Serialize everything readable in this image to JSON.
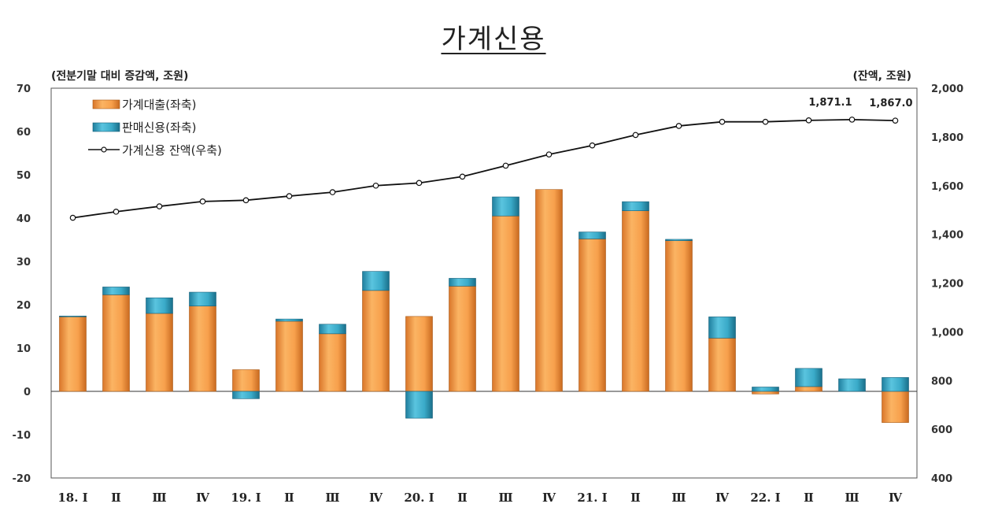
{
  "title": "가계신용",
  "chart_data": {
    "type": "bar",
    "stacked": true,
    "title": "가계신용",
    "left_axis_unit": "(전분기말 대비 증감액, 조원)",
    "right_axis_unit": "(잔액, 조원)",
    "ylim_left": [
      -20,
      70
    ],
    "ylim_right": [
      400,
      2000
    ],
    "left_ticks": [
      "70",
      "60",
      "50",
      "40",
      "30",
      "20",
      "10",
      "0",
      "-10",
      "-20"
    ],
    "right_ticks": [
      "2,000",
      "1,800",
      "1,600",
      "1,400",
      "1,200",
      "1,000",
      "800",
      "600",
      "400"
    ],
    "categories": [
      "18. Ⅰ",
      "Ⅱ",
      "Ⅲ",
      "Ⅳ",
      "19. Ⅰ",
      "Ⅱ",
      "Ⅲ",
      "Ⅳ",
      "20. Ⅰ",
      "Ⅱ",
      "Ⅲ",
      "Ⅳ",
      "21. Ⅰ",
      "Ⅱ",
      "Ⅲ",
      "Ⅳ",
      "22. Ⅰ",
      "Ⅱ",
      "Ⅲ",
      "Ⅳ"
    ],
    "series": [
      {
        "name": "가계대출(좌축)",
        "kind": "bar",
        "axis": "left",
        "color": "#f5a04a",
        "values": [
          17.3,
          22.3,
          18.0,
          19.7,
          5.0,
          16.2,
          13.3,
          23.3,
          17.3,
          24.3,
          40.5,
          46.6,
          35.2,
          41.7,
          34.8,
          12.3,
          -0.6,
          1.1,
          0.0,
          -7.2
        ]
      },
      {
        "name": "판매신용(좌축)",
        "kind": "bar",
        "axis": "left",
        "color": "#3aaac8",
        "values": [
          0.1,
          1.8,
          3.6,
          3.2,
          -1.7,
          0.5,
          2.2,
          4.4,
          -6.2,
          1.8,
          4.4,
          0.0,
          1.6,
          2.1,
          0.3,
          4.9,
          1.0,
          4.2,
          2.9,
          3.2
        ]
      },
      {
        "name": "가계신용 잔액(우축)",
        "kind": "line",
        "axis": "right",
        "color": "#111111",
        "values": [
          1468,
          1493,
          1515,
          1535,
          1540,
          1557,
          1573,
          1600,
          1611,
          1637,
          1682,
          1728,
          1765,
          1808,
          1845,
          1862,
          1862,
          1868,
          1871.1,
          1867.0
        ]
      }
    ],
    "annotations": [
      "1,871.1",
      "1,867.0"
    ],
    "legend_position": "top-left",
    "grid": false
  }
}
